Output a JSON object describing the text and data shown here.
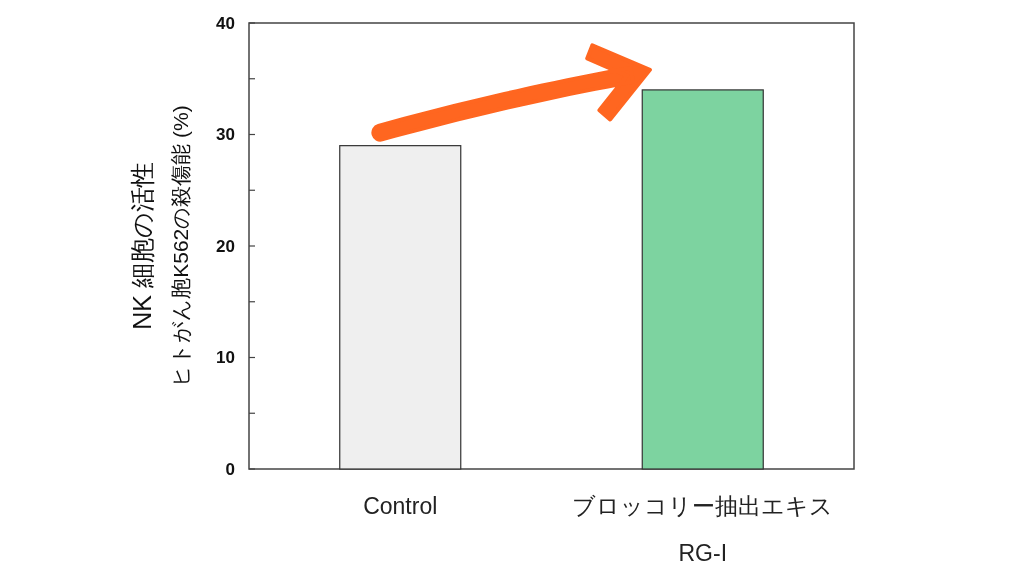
{
  "chart_data": {
    "type": "bar",
    "categories": [
      "Control",
      "ブロッコリー抽出エキス\nRG-I"
    ],
    "values": [
      29,
      34
    ],
    "colors": [
      "#efefef",
      "#7dd3a0"
    ],
    "ylabel": "NK 細胞の活性",
    "annotations": [
      "ヒトがん胞K562の殺傷能 (%)"
    ],
    "ylim": [
      0,
      40
    ],
    "yticks": [
      0,
      {
        "value": 5,
        "label": null
      },
      10,
      {
        "value": 15,
        "label": null
      },
      20,
      {
        "value": 25,
        "label": null
      },
      30,
      {
        "value": 35,
        "label": null
      },
      40
    ]
  }
}
